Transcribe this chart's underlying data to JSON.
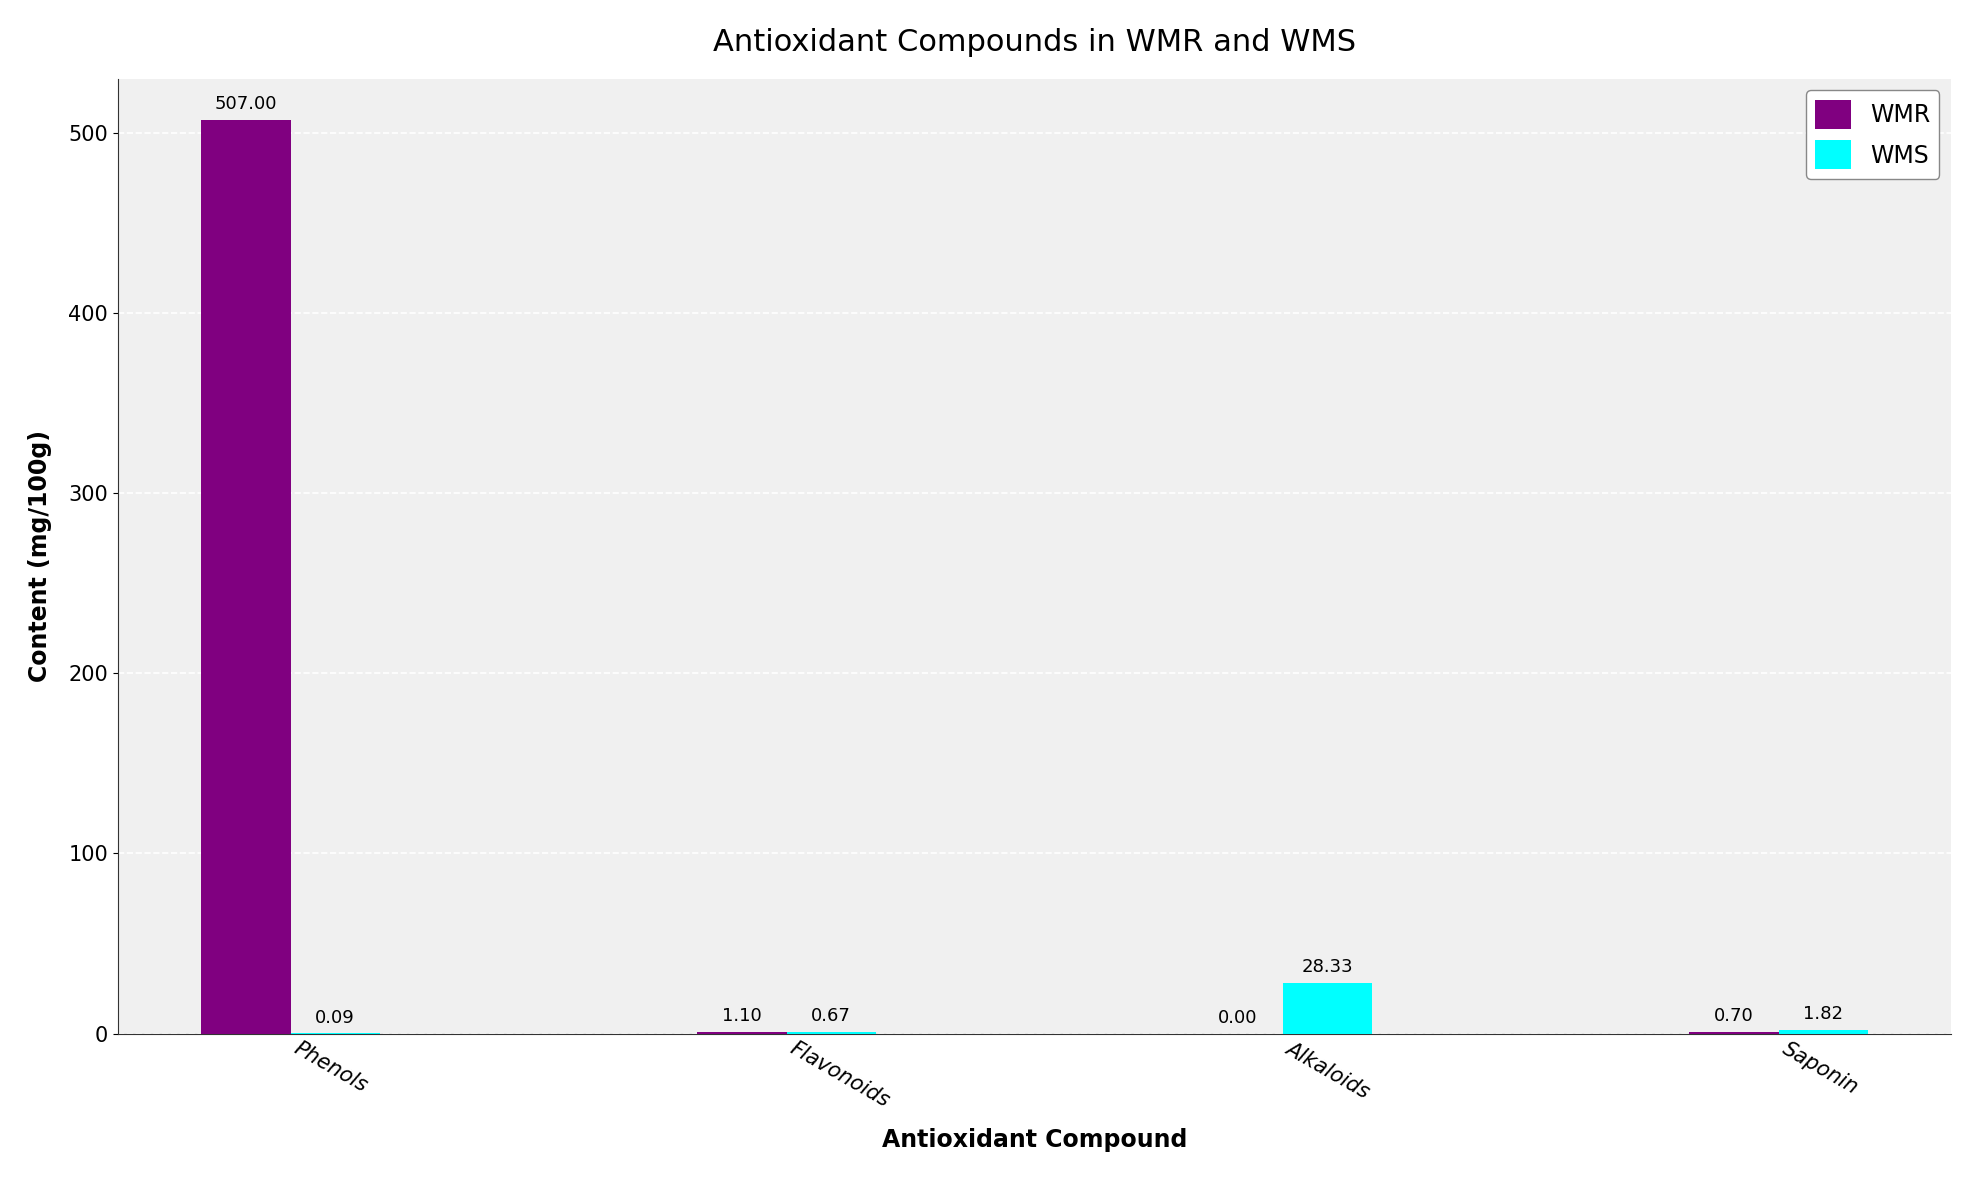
{
  "title": "Antioxidant Compounds in WMR and WMS",
  "xlabel": "Antioxidant Compound",
  "ylabel": "Content (mg/100g)",
  "categories": [
    "Phenols",
    "Flavonoids",
    "Alkaloids",
    "Saponin"
  ],
  "wmr_values": [
    507.0,
    1.1,
    0.0,
    0.7
  ],
  "wms_values": [
    0.09,
    0.67,
    28.33,
    1.82
  ],
  "wmr_color": "#800080",
  "wms_color": "#00FFFF",
  "bar_width": 0.18,
  "ylim": [
    0,
    530
  ],
  "legend_labels": [
    "WMR",
    "WMS"
  ],
  "title_fontsize": 22,
  "label_fontsize": 17,
  "tick_fontsize": 15,
  "annotation_fontsize": 13,
  "background_color": "#ffffff",
  "plot_bg_color": "#f0f0f0",
  "grid_color": "#ffffff",
  "grid_style": "--",
  "grid_alpha": 1.0
}
